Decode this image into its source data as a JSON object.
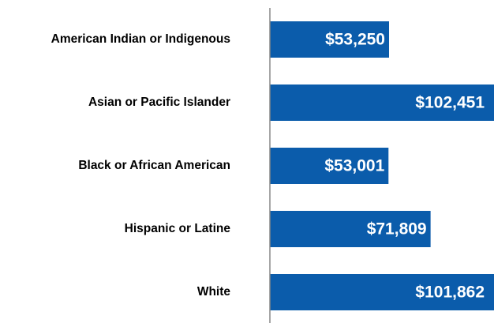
{
  "chart_data": {
    "type": "bar",
    "orientation": "horizontal",
    "categories": [
      "American Indian or Indigenous",
      "Asian or Pacific Islander",
      "Black or African American",
      "Hispanic or Latine",
      "White"
    ],
    "values": [
      53250,
      102451,
      53001,
      71809,
      101862
    ],
    "value_labels": [
      "$53,250",
      "$102,451",
      "$53,001",
      "$71,809",
      "$101,862"
    ],
    "color": "#0b5cab"
  }
}
